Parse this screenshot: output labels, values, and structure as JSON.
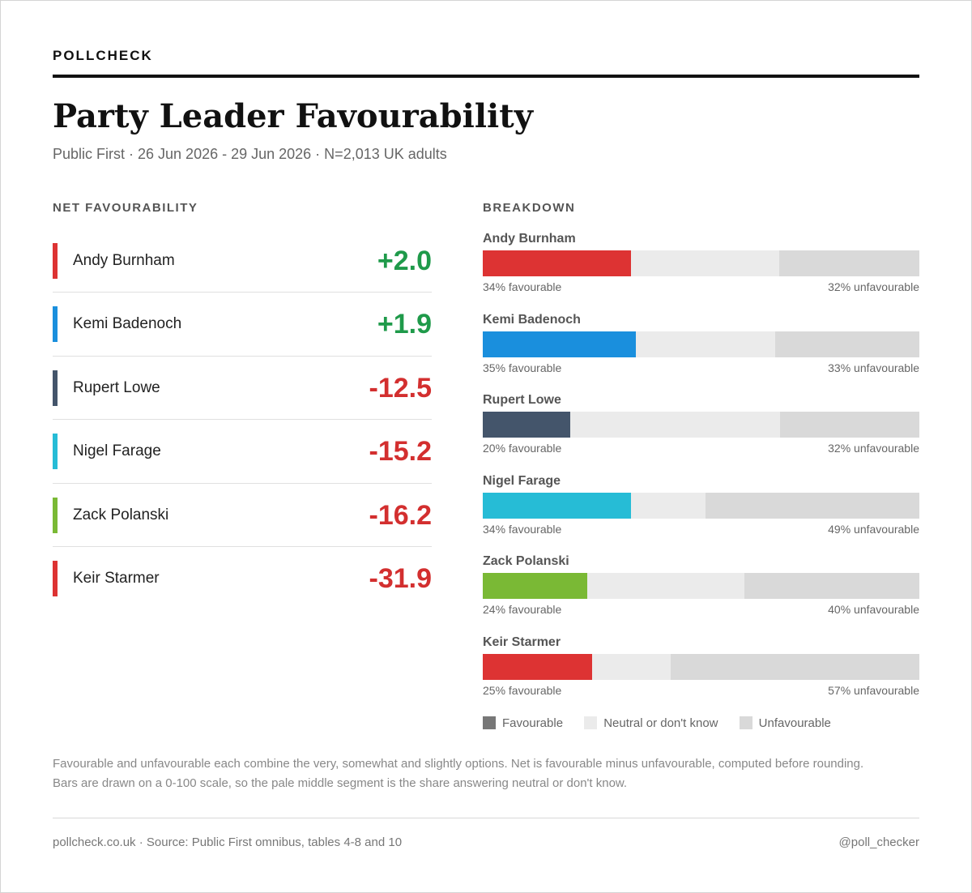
{
  "header": {
    "brand": "POLLCHECK",
    "title": "Party Leader Favourability",
    "subtitle": "Public First · 26 Jun 2026 - 29 Jun 2026 · N=2,013 UK adults"
  },
  "sections": {
    "net_label": "NET FAVOURABILITY",
    "breakdown_label": "BREAKDOWN"
  },
  "colors": {
    "positive": "#1f9a4a",
    "negative": "#d32f2f",
    "neutral_segment": "#ebebeb",
    "unfavourable_segment": "#d9d9d9",
    "legend_favourable": "#777777"
  },
  "legend": {
    "favourable": "Favourable",
    "neutral": "Neutral or don't know",
    "unfavourable": "Unfavourable"
  },
  "chart_data": {
    "type": "bar",
    "categories": [
      "Andy Burnham",
      "Kemi Badenoch",
      "Rupert Lowe",
      "Nigel Farage",
      "Zack Polanski",
      "Keir Starmer"
    ],
    "xlim": [
      0,
      100
    ],
    "series": [
      {
        "name": "Favourable",
        "values": [
          34,
          35,
          20,
          34,
          24,
          25
        ]
      },
      {
        "name": "Neutral or don't know",
        "values": [
          34,
          32,
          48,
          17,
          36,
          18
        ]
      },
      {
        "name": "Unfavourable",
        "values": [
          32,
          33,
          32,
          49,
          40,
          57
        ]
      }
    ],
    "net_values": [
      "+2.0",
      "+1.9",
      "-12.5",
      "-15.2",
      "-16.2",
      "-31.9"
    ],
    "leaders": [
      {
        "name": "Andy Burnham",
        "color": "#dd3333",
        "net": "+2.0",
        "net_sign": "positive",
        "favourable": 34,
        "neutral": 34,
        "unfavourable": 32,
        "fav_label": "34% favourable",
        "unfav_label": "32% unfavourable"
      },
      {
        "name": "Kemi Badenoch",
        "color": "#1a8fdd",
        "net": "+1.9",
        "net_sign": "positive",
        "favourable": 35,
        "neutral": 32,
        "unfavourable": 33,
        "fav_label": "35% favourable",
        "unfav_label": "33% unfavourable"
      },
      {
        "name": "Rupert Lowe",
        "color": "#44556b",
        "net": "-12.5",
        "net_sign": "negative",
        "favourable": 20,
        "neutral": 48,
        "unfavourable": 32,
        "fav_label": "20% favourable",
        "unfav_label": "32% unfavourable"
      },
      {
        "name": "Nigel Farage",
        "color": "#26bcd6",
        "net": "-15.2",
        "net_sign": "negative",
        "favourable": 34,
        "neutral": 17,
        "unfavourable": 49,
        "fav_label": "34% favourable",
        "unfav_label": "49% unfavourable"
      },
      {
        "name": "Zack Polanski",
        "color": "#7ab935",
        "net": "-16.2",
        "net_sign": "negative",
        "favourable": 24,
        "neutral": 36,
        "unfavourable": 40,
        "fav_label": "24% favourable",
        "unfav_label": "40% unfavourable"
      },
      {
        "name": "Keir Starmer",
        "color": "#dd3333",
        "net": "-31.9",
        "net_sign": "negative",
        "favourable": 25,
        "neutral": 18,
        "unfavourable": 57,
        "fav_label": "25% favourable",
        "unfav_label": "57% unfavourable"
      }
    ]
  },
  "footnote": {
    "line1": "Favourable and unfavourable each combine the very, somewhat and slightly options. Net is favourable minus unfavourable, computed before rounding.",
    "line2": "Bars are drawn on a 0-100 scale, so the pale middle segment is the share answering neutral or don't know."
  },
  "footer": {
    "left": "pollcheck.co.uk · Source: Public First omnibus, tables 4-8 and 10",
    "right": "@poll_checker"
  }
}
